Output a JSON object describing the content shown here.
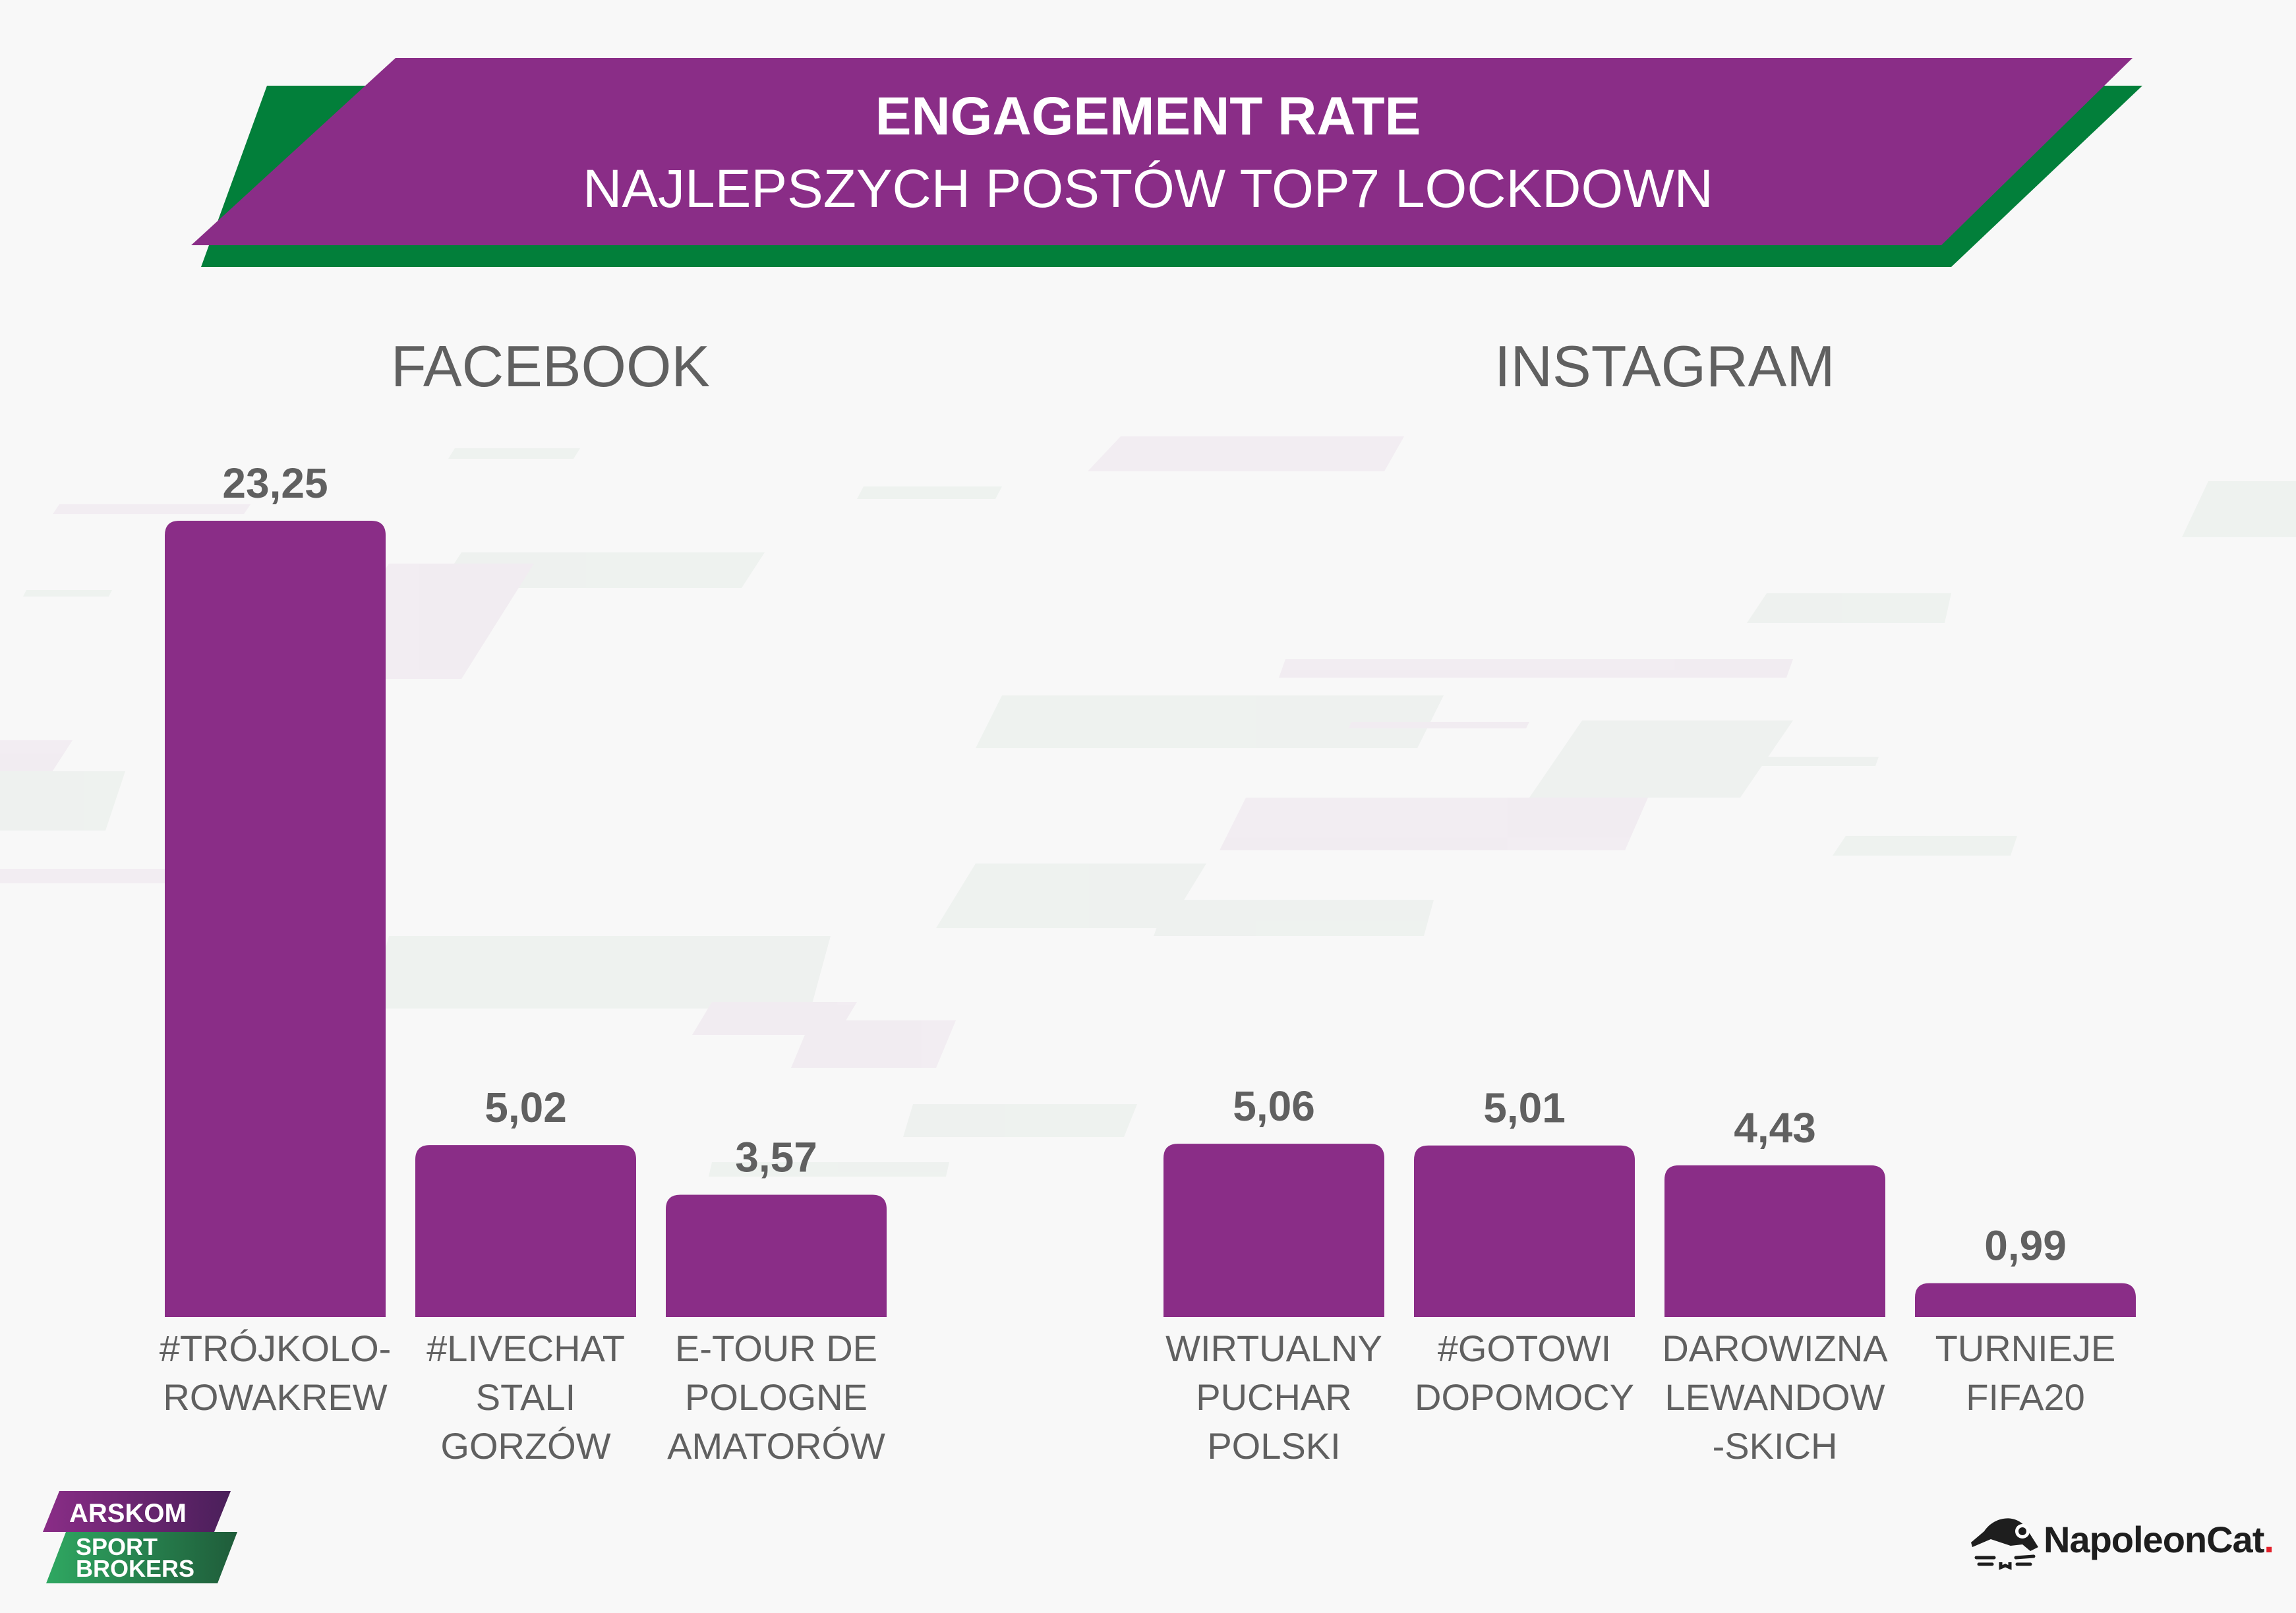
{
  "header": {
    "title": "ENGAGEMENT RATE",
    "subtitle": "NAJLEPSZYCH POSTÓW TOP7 LOCKDOWN"
  },
  "colors": {
    "bar": "#8a2d87",
    "banner": "#8a2d87",
    "banner_shadow": "#027f3a",
    "text": "#606060",
    "background": "#f8f8f8"
  },
  "chart_data": [
    {
      "type": "bar",
      "title": "FACEBOOK",
      "categories": [
        [
          "#TRÓJKOLO-",
          "ROWAKREW"
        ],
        [
          "#LIVECHAT",
          "STALI",
          "GORZÓW"
        ],
        [
          "E-TOUR DE",
          "POLOGNE",
          "AMATORÓW"
        ]
      ],
      "values": [
        23.25,
        5.02,
        3.57
      ],
      "value_labels": [
        "23,25",
        "5,02",
        "3,57"
      ],
      "xlabel": "",
      "ylabel": "",
      "ylim": [
        0,
        23.25
      ],
      "grid": false
    },
    {
      "type": "bar",
      "title": "INSTAGRAM",
      "categories": [
        [
          "WIRTUALNY",
          "PUCHAR",
          "POLSKI"
        ],
        [
          "#GOTOWI",
          "DOPOMOCY"
        ],
        [
          "DAROWIZNA",
          "LEWANDOW",
          "-SKICH"
        ],
        [
          "TURNIEJE",
          "FIFA20"
        ]
      ],
      "values": [
        5.06,
        5.01,
        4.43,
        0.99
      ],
      "value_labels": [
        "5,06",
        "5,01",
        "4,43",
        "0,99"
      ],
      "xlabel": "",
      "ylabel": "",
      "ylim": [
        0,
        23.25
      ],
      "grid": false
    }
  ],
  "logos": {
    "left_top": "ARSKOM",
    "left_bottom_1": "SPORT",
    "left_bottom_2": "BROKERS",
    "right": "NapoleonCat",
    "right_dot": "."
  }
}
